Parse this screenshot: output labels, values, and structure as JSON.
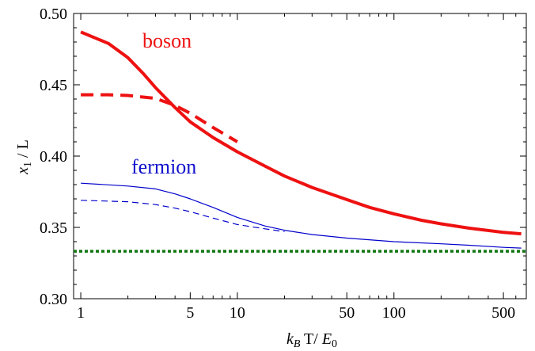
{
  "chart_data": {
    "type": "line",
    "xlabel": {
      "sym": "k",
      "sub": "B",
      "mid": " T/ ",
      "sym2": "E",
      "sub2": "0"
    },
    "ylabel": {
      "sym": "x",
      "sub": "1",
      "rest": " / L"
    },
    "x_scale": "log",
    "xlim": [
      0.9,
      700
    ],
    "ylim": [
      0.3,
      0.5
    ],
    "x_ticks": [
      1,
      5,
      10,
      50,
      100,
      500
    ],
    "x_tick_labels": [
      "1",
      "5",
      "10",
      "50",
      "100",
      "500"
    ],
    "y_ticks": [
      0.3,
      0.35,
      0.4,
      0.45,
      0.5
    ],
    "y_tick_labels": [
      "0.30",
      "0.35",
      "0.40",
      "0.45",
      "0.50"
    ],
    "grid": false,
    "annotations": [
      {
        "text": "boson",
        "color": "#ee1111"
      },
      {
        "text": "fermion",
        "color": "#1111cc"
      }
    ],
    "series": [
      {
        "color": "#ee1111",
        "style": "solid",
        "width": 4,
        "x": [
          1,
          1.5,
          2,
          2.5,
          3,
          4,
          5,
          7,
          10,
          15,
          20,
          30,
          50,
          70,
          100,
          150,
          200,
          300,
          500,
          650
        ],
        "y": [
          0.487,
          0.479,
          0.469,
          0.458,
          0.448,
          0.434,
          0.424,
          0.413,
          0.403,
          0.393,
          0.386,
          0.378,
          0.3695,
          0.364,
          0.3595,
          0.355,
          0.3525,
          0.3495,
          0.3465,
          0.3455
        ]
      },
      {
        "color": "#ee1111",
        "style": "dashed",
        "width": 4,
        "x": [
          1,
          1.5,
          2,
          3,
          4,
          5,
          7,
          10
        ],
        "y": [
          0.443,
          0.443,
          0.4425,
          0.4405,
          0.4355,
          0.43,
          0.42,
          0.41
        ]
      },
      {
        "color": "#0000cc",
        "style": "solid",
        "width": 1.2,
        "x": [
          1,
          2,
          3,
          4,
          5,
          7,
          10,
          15,
          20,
          30,
          50,
          100,
          200,
          300,
          500,
          650
        ],
        "y": [
          0.381,
          0.379,
          0.377,
          0.3735,
          0.37,
          0.364,
          0.357,
          0.351,
          0.348,
          0.345,
          0.3425,
          0.34,
          0.3385,
          0.3375,
          0.336,
          0.3355
        ]
      },
      {
        "color": "#0000cc",
        "style": "dashed",
        "width": 1.2,
        "x": [
          1,
          2,
          3,
          4,
          5,
          7,
          10,
          15,
          20
        ],
        "y": [
          0.369,
          0.368,
          0.366,
          0.3635,
          0.361,
          0.3565,
          0.352,
          0.349,
          0.347
        ]
      },
      {
        "color": "#117711",
        "style": "dotted",
        "width": 3.5,
        "x": [
          0.9,
          700
        ],
        "y": [
          0.3333,
          0.3333
        ]
      }
    ]
  }
}
